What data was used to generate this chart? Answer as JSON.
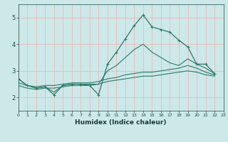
{
  "title": "",
  "xlabel": "Humidex (Indice chaleur)",
  "xlim": [
    0,
    23
  ],
  "ylim": [
    1.5,
    5.5
  ],
  "yticks": [
    2,
    3,
    4,
    5
  ],
  "xticks": [
    0,
    1,
    2,
    3,
    4,
    5,
    6,
    7,
    8,
    9,
    10,
    11,
    12,
    13,
    14,
    15,
    16,
    17,
    18,
    19,
    20,
    21,
    22,
    23
  ],
  "background_color": "#cce8e8",
  "grid_color": "#f0b0b0",
  "line_color": "#2a7a6a",
  "tick_color": "#1a4a4a",
  "label_color": "#1a3a3a",
  "lines": [
    [
      2.7,
      2.45,
      2.35,
      2.4,
      2.1,
      2.45,
      2.5,
      2.5,
      2.45,
      2.1,
      3.25,
      3.7,
      4.2,
      4.7,
      5.1,
      4.65,
      4.55,
      4.45,
      4.15,
      3.9,
      3.25,
      3.25,
      2.9
    ],
    [
      2.7,
      2.45,
      2.35,
      2.4,
      2.2,
      2.45,
      2.5,
      2.5,
      2.5,
      2.5,
      3.0,
      3.2,
      3.5,
      3.8,
      4.0,
      3.7,
      3.5,
      3.3,
      3.2,
      3.45,
      3.25,
      3.1,
      2.9
    ],
    [
      2.55,
      2.45,
      2.4,
      2.45,
      2.45,
      2.5,
      2.55,
      2.55,
      2.55,
      2.6,
      2.7,
      2.75,
      2.85,
      2.9,
      2.95,
      2.95,
      3.0,
      3.05,
      3.1,
      3.2,
      3.1,
      2.95,
      2.85
    ],
    [
      2.45,
      2.35,
      2.3,
      2.35,
      2.35,
      2.4,
      2.45,
      2.45,
      2.45,
      2.5,
      2.6,
      2.65,
      2.7,
      2.75,
      2.8,
      2.8,
      2.85,
      2.9,
      2.95,
      3.0,
      2.95,
      2.85,
      2.8
    ]
  ],
  "marker": "+"
}
